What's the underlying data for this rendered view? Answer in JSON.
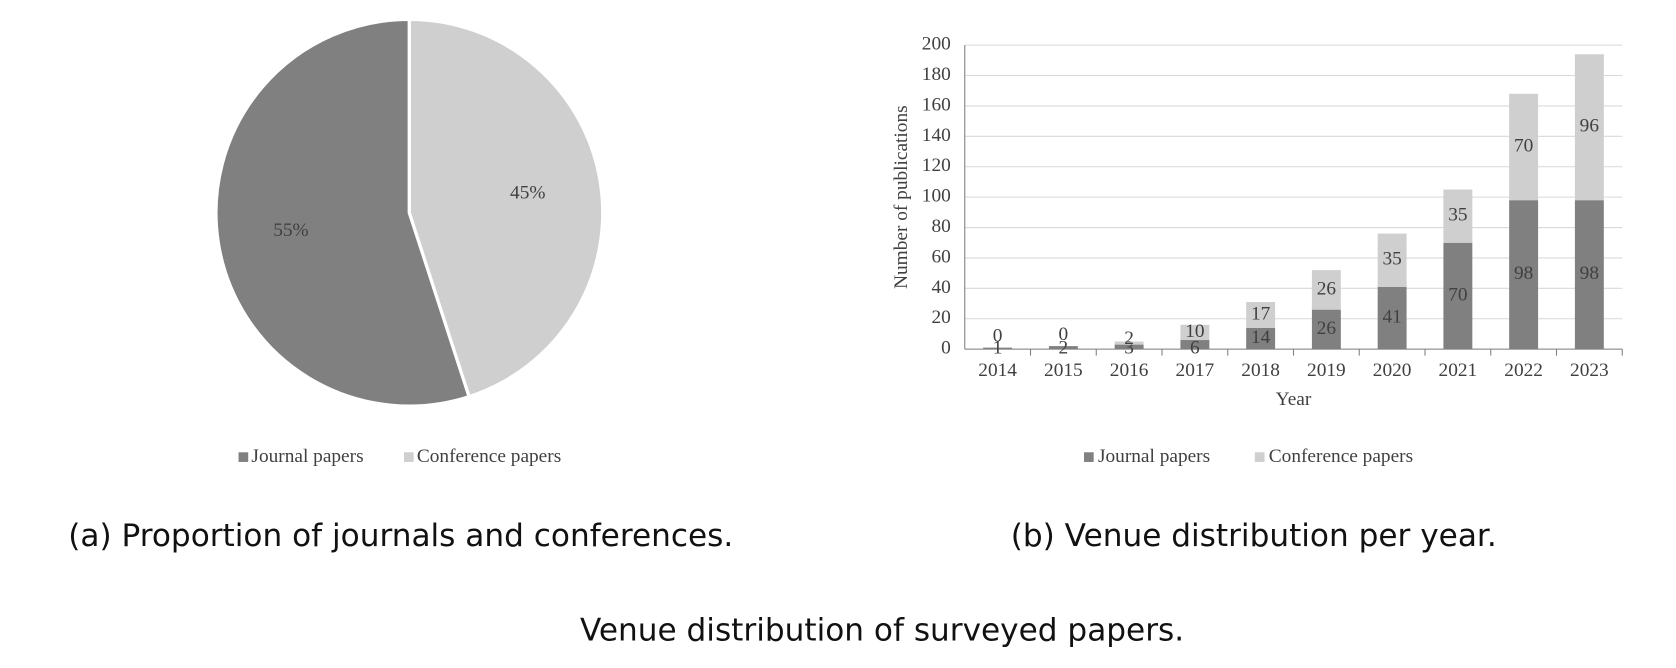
{
  "chart_data": [
    {
      "type": "pie",
      "caption": "(a) Proportion of journals and conferences.",
      "categories": [
        "Journal papers",
        "Conference papers"
      ],
      "values": [
        55,
        45
      ],
      "value_labels": [
        "55%",
        "45%"
      ],
      "colors": [
        "#808080",
        "#d0cfd0"
      ],
      "legend": "bottom"
    },
    {
      "type": "bar",
      "stacked": true,
      "caption": "(b) Venue distribution per year.",
      "x_label": "Year",
      "y_label": "Number of publications",
      "categories": [
        "2014",
        "2015",
        "2016",
        "2017",
        "2018",
        "2019",
        "2020",
        "2021",
        "2022",
        "2023"
      ],
      "series": [
        {
          "name": "Journal papers",
          "color": "#808080",
          "values": [
            1,
            2,
            3,
            6,
            14,
            26,
            41,
            70,
            98,
            98
          ]
        },
        {
          "name": "Conference papers",
          "color": "#d0cfd0",
          "values": [
            0,
            0,
            2,
            10,
            17,
            26,
            35,
            35,
            70,
            96
          ]
        }
      ],
      "ylim": [
        0,
        200
      ],
      "yticks": [
        0,
        20,
        40,
        60,
        80,
        100,
        120,
        140,
        160,
        180,
        200
      ],
      "grid": true,
      "legend": "bottom"
    }
  ],
  "figure_caption": "Venue distribution of surveyed papers."
}
